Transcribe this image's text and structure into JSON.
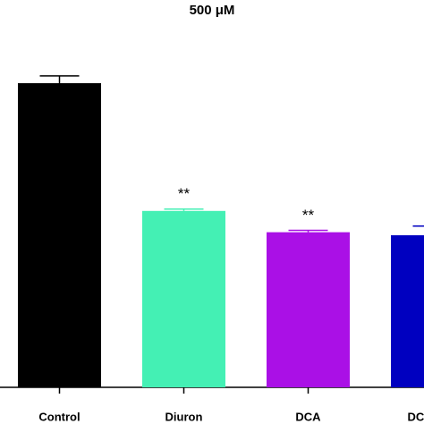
{
  "chart_data": {
    "type": "bar",
    "title": "500 μM",
    "categories": [
      "Control",
      "Diuron",
      "DCA",
      "DC"
    ],
    "series": [
      {
        "values": [
          100,
          58,
          51,
          50
        ],
        "errors": [
          2.4,
          0.6,
          0.6,
          3
        ],
        "colors": [
          "#000000",
          "#44f0b4",
          "#aa10e6",
          "#0000c0"
        ]
      }
    ],
    "annotations": [
      null,
      "**",
      "**",
      null
    ],
    "ylim": [
      0,
      100
    ]
  }
}
